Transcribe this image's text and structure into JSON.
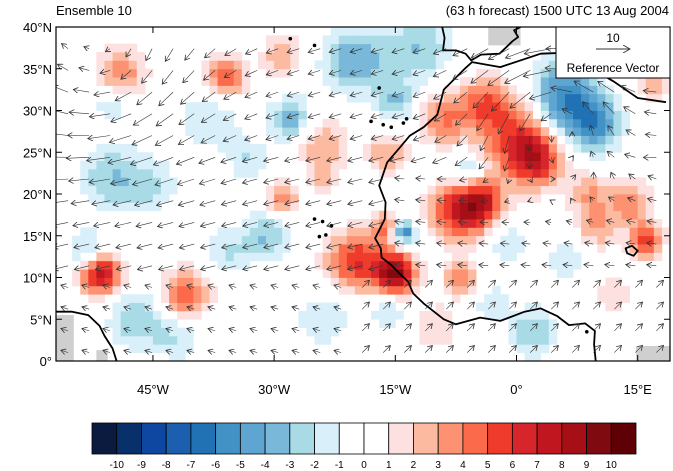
{
  "title_left": "Ensemble 10",
  "title_right": "(63 h forecast) 1500 UTC 13 Aug 2004",
  "lat_labels": [
    "0°",
    "5°N",
    "10°N",
    "15°N",
    "20°N",
    "25°N",
    "30°N",
    "35°N",
    "40°N"
  ],
  "lat_values": [
    0,
    5,
    10,
    15,
    20,
    25,
    30,
    35,
    40
  ],
  "lon_labels": [
    "45°W",
    "30°W",
    "15°W",
    "0°",
    "15°E"
  ],
  "lon_values": [
    -45,
    -30,
    -15,
    0,
    15
  ],
  "reference_vector": {
    "magnitude": "10",
    "label": "Reference Vector"
  },
  "colorbar": {
    "tick_labels": [
      "-10",
      "-9",
      "-8",
      "-7",
      "-6",
      "-5",
      "-4",
      "-3",
      "-2",
      "-1",
      "0",
      "1",
      "2",
      "3",
      "4",
      "5",
      "6",
      "7",
      "8",
      "9",
      "10"
    ],
    "colors": [
      "#0b1a3f",
      "#08306b",
      "#0d47a1",
      "#1c5fae",
      "#2171b5",
      "#4292c6",
      "#5fa5d1",
      "#79b8d9",
      "#a9dbe6",
      "#d9f0fa",
      "#ffffff",
      "#ffffff",
      "#fde0e0",
      "#fcbba1",
      "#fc9272",
      "#fb6a4a",
      "#ef3b2c",
      "#d7262b",
      "#c0161f",
      "#a50f15",
      "#7f0a10",
      "#5e0006"
    ]
  },
  "map": {
    "lon_min": -57,
    "lon_max": 19,
    "lat_min": 0,
    "lat_max": 40,
    "blobs": [
      {
        "lon": 0.5,
        "lat": 27,
        "r": 5,
        "v": 6
      },
      {
        "lon": 2.5,
        "lat": 24,
        "r": 3,
        "v": 5
      },
      {
        "lon": -4,
        "lat": 31,
        "r": 3,
        "v": 4
      },
      {
        "lon": -9,
        "lat": 29,
        "r": 3,
        "v": 4
      },
      {
        "lon": -7,
        "lat": 18,
        "r": 3.5,
        "v": 7
      },
      {
        "lon": -4,
        "lat": 19,
        "r": 2.5,
        "v": 5
      },
      {
        "lon": -15,
        "lat": 10.5,
        "r": 2.5,
        "v": 9
      },
      {
        "lon": -20,
        "lat": 12,
        "r": 3.5,
        "v": 6
      },
      {
        "lon": -14,
        "lat": 15.5,
        "r": 1.5,
        "v": -7
      },
      {
        "lon": -16,
        "lat": 16,
        "r": 2,
        "v": 4
      },
      {
        "lon": -51.5,
        "lat": 10.5,
        "r": 2.5,
        "v": 8
      },
      {
        "lon": -41,
        "lat": 8,
        "r": 3,
        "v": 5
      },
      {
        "lon": -53,
        "lat": 13,
        "r": 2.5,
        "v": -3
      },
      {
        "lon": -36,
        "lat": 34,
        "r": 2.5,
        "v": 5
      },
      {
        "lon": -49,
        "lat": 34.5,
        "r": 3,
        "v": 4
      },
      {
        "lon": -29,
        "lat": 36.5,
        "r": 2.5,
        "v": 3
      },
      {
        "lon": -24,
        "lat": 26,
        "r": 3,
        "v": 3
      },
      {
        "lon": -24,
        "lat": 22,
        "r": 2,
        "v": 2
      },
      {
        "lon": -29,
        "lat": 19.5,
        "r": 2,
        "v": 4
      },
      {
        "lon": -16,
        "lat": 25,
        "r": 2.5,
        "v": 3
      },
      {
        "lon": -7,
        "lat": 10,
        "r": 2,
        "v": 4
      },
      {
        "lon": 10,
        "lat": 16,
        "r": 2.5,
        "v": 3
      },
      {
        "lon": 16,
        "lat": 14.5,
        "r": 2,
        "v": 6
      },
      {
        "lon": 14,
        "lat": 19,
        "r": 2.5,
        "v": 4
      },
      {
        "lon": 9,
        "lat": 20,
        "r": 2.5,
        "v": 3
      },
      {
        "lon": 17,
        "lat": 33,
        "r": 2,
        "v": 3
      },
      {
        "lon": 11,
        "lat": 36.5,
        "r": 2,
        "v": 3
      },
      {
        "lon": -10,
        "lat": 4,
        "r": 3,
        "v": 2
      },
      {
        "lon": 12,
        "lat": 8,
        "r": 2,
        "v": 2
      },
      {
        "lon": 6,
        "lat": 31,
        "r": 4.5,
        "v": -7
      },
      {
        "lon": 10,
        "lat": 28,
        "r": 3,
        "v": -4
      },
      {
        "lon": -20,
        "lat": 36,
        "r": 4,
        "v": -4
      },
      {
        "lon": -12,
        "lat": 37.5,
        "r": 4,
        "v": -3
      },
      {
        "lon": -15,
        "lat": 31,
        "r": 2.5,
        "v": -3
      },
      {
        "lon": -38,
        "lat": 29,
        "r": 4,
        "v": -2
      },
      {
        "lon": -50,
        "lat": 22,
        "r": 4,
        "v": -3
      },
      {
        "lon": -45,
        "lat": 21,
        "r": 3,
        "v": -2
      },
      {
        "lon": -28,
        "lat": 29,
        "r": 2.5,
        "v": -4
      },
      {
        "lon": -31,
        "lat": 15,
        "r": 3,
        "v": -3
      },
      {
        "lon": -36,
        "lat": 13,
        "r": 3,
        "v": -2
      },
      {
        "lon": -47,
        "lat": 5,
        "r": 3.5,
        "v": -3
      },
      {
        "lon": -42,
        "lat": 3,
        "r": 3,
        "v": -2
      },
      {
        "lon": -24,
        "lat": 5,
        "r": 3.5,
        "v": -2
      },
      {
        "lon": -16,
        "lat": 6,
        "r": 2.5,
        "v": -2
      },
      {
        "lon": -1,
        "lat": 14,
        "r": 2.5,
        "v": -2
      },
      {
        "lon": 2,
        "lat": 3.5,
        "r": 3,
        "v": -3
      },
      {
        "lon": 6,
        "lat": 12,
        "r": 2.5,
        "v": -2
      },
      {
        "lon": -6,
        "lat": 23,
        "r": 2,
        "v": -3
      },
      {
        "lon": -50,
        "lat": 31,
        "r": 2.5,
        "v": -2
      },
      {
        "lon": -33,
        "lat": 24,
        "r": 2.5,
        "v": -2
      },
      {
        "lon": -3,
        "lat": 7,
        "r": 2,
        "v": -2
      }
    ],
    "coast_africa": [
      [
        18.5,
        31
      ],
      [
        15,
        31.5
      ],
      [
        12,
        33.5
      ],
      [
        10.2,
        34.5
      ],
      [
        10.5,
        37.2
      ],
      [
        8.5,
        37
      ],
      [
        3,
        36.8
      ],
      [
        -2,
        35.2
      ],
      [
        -5.5,
        35.8
      ],
      [
        -6.3,
        35.1
      ],
      [
        -9,
        32.5
      ],
      [
        -9.8,
        29.5
      ],
      [
        -11.5,
        28
      ],
      [
        -13.2,
        27
      ],
      [
        -14.5,
        25.5
      ],
      [
        -16,
        23.8
      ],
      [
        -17,
        21
      ],
      [
        -16.2,
        19
      ],
      [
        -16.3,
        17
      ],
      [
        -17.5,
        14.7
      ],
      [
        -16.8,
        13.5
      ],
      [
        -16.7,
        12.4
      ],
      [
        -15.5,
        11.5
      ],
      [
        -14.5,
        10.5
      ],
      [
        -13.4,
        9.5
      ],
      [
        -12.8,
        8.1
      ],
      [
        -11.5,
        6.9
      ],
      [
        -9,
        5
      ],
      [
        -7.5,
        4.4
      ],
      [
        -4.5,
        5.2
      ],
      [
        -2,
        4.8
      ],
      [
        1,
        5.9
      ],
      [
        3,
        6.3
      ],
      [
        5,
        5.4
      ],
      [
        6.5,
        4.3
      ],
      [
        8.5,
        4.5
      ],
      [
        9.7,
        3.6
      ],
      [
        9.6,
        2
      ],
      [
        9.8,
        0
      ]
    ],
    "coast_europe": [
      [
        -9.2,
        40
      ],
      [
        -8.9,
        38.7
      ],
      [
        -9.1,
        37.2
      ],
      [
        -7.5,
        37.2
      ],
      [
        -6.3,
        36.8
      ],
      [
        -5.6,
        36
      ],
      [
        -4.4,
        36.7
      ],
      [
        -2.1,
        36.8
      ],
      [
        -0.5,
        38.3
      ],
      [
        0.2,
        38.8
      ],
      [
        -0.3,
        39.6
      ],
      [
        0.5,
        40
      ]
    ],
    "coast_america": [
      [
        -57,
        5.9
      ],
      [
        -55,
        5.9
      ],
      [
        -53,
        5.5
      ],
      [
        -51.6,
        4.2
      ],
      [
        -51,
        3
      ],
      [
        -50,
        1.5
      ],
      [
        -49.5,
        0
      ]
    ],
    "lake_chad": [
      [
        13.5,
        13.5
      ],
      [
        14.3,
        13.8
      ],
      [
        15,
        13.2
      ],
      [
        14.5,
        12.6
      ],
      [
        13.7,
        12.9
      ]
    ],
    "islands": [
      [
        -25,
        37.8
      ],
      [
        -28,
        38.6
      ],
      [
        -17,
        32.7
      ],
      [
        -16.5,
        28.3
      ],
      [
        -15.5,
        28
      ],
      [
        -14,
        28.5
      ],
      [
        -13.6,
        29
      ],
      [
        -18,
        28.7
      ],
      [
        -23.6,
        15.1
      ],
      [
        -24.4,
        14.9
      ],
      [
        -22.9,
        16.2
      ],
      [
        -25,
        17
      ],
      [
        -24,
        16.7
      ],
      [
        8.7,
        3.5
      ],
      [
        10.2,
        38.5
      ],
      [
        9.2,
        39.5
      ]
    ],
    "land_masks": [
      {
        "lon0": -3.5,
        "lat0": 37.8,
        "lon1": 0.5,
        "lat1": 40
      },
      {
        "lon0": 14.8,
        "lat0": 0,
        "lon1": 19,
        "lat1": 1.8
      },
      {
        "lon0": -57,
        "lat0": 0,
        "lon1": -54.8,
        "lat1": 5.5
      },
      {
        "lon0": -52,
        "lat0": 0,
        "lon1": -50.6,
        "lat1": 1.3
      }
    ]
  }
}
